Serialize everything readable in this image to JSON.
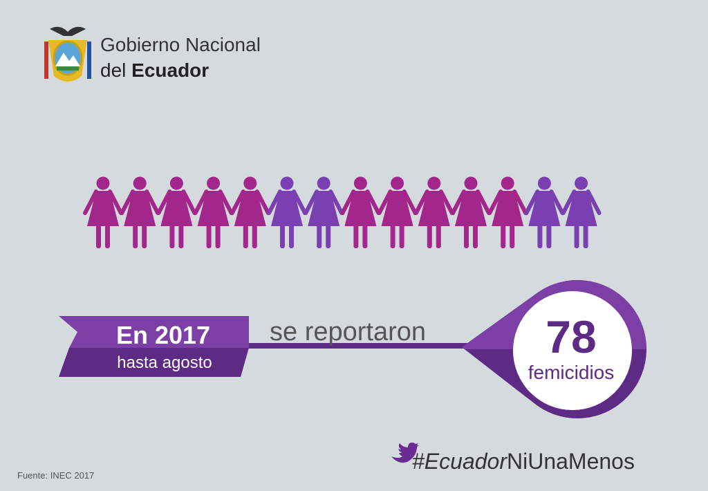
{
  "header": {
    "line1": "Gobierno Nacional",
    "line2_prefix": "del",
    "line2_bold": "Ecuador"
  },
  "banner": {
    "year_prefix": "En",
    "year": "2017",
    "period": "hasta agosto"
  },
  "connector": "se reportaron",
  "highlight": {
    "number": 78,
    "label": "femicidios"
  },
  "hashtag": {
    "italic": "#Ecuador",
    "regular": "NiUnaMenos"
  },
  "source": "Fuente: INEC 2017"
}
